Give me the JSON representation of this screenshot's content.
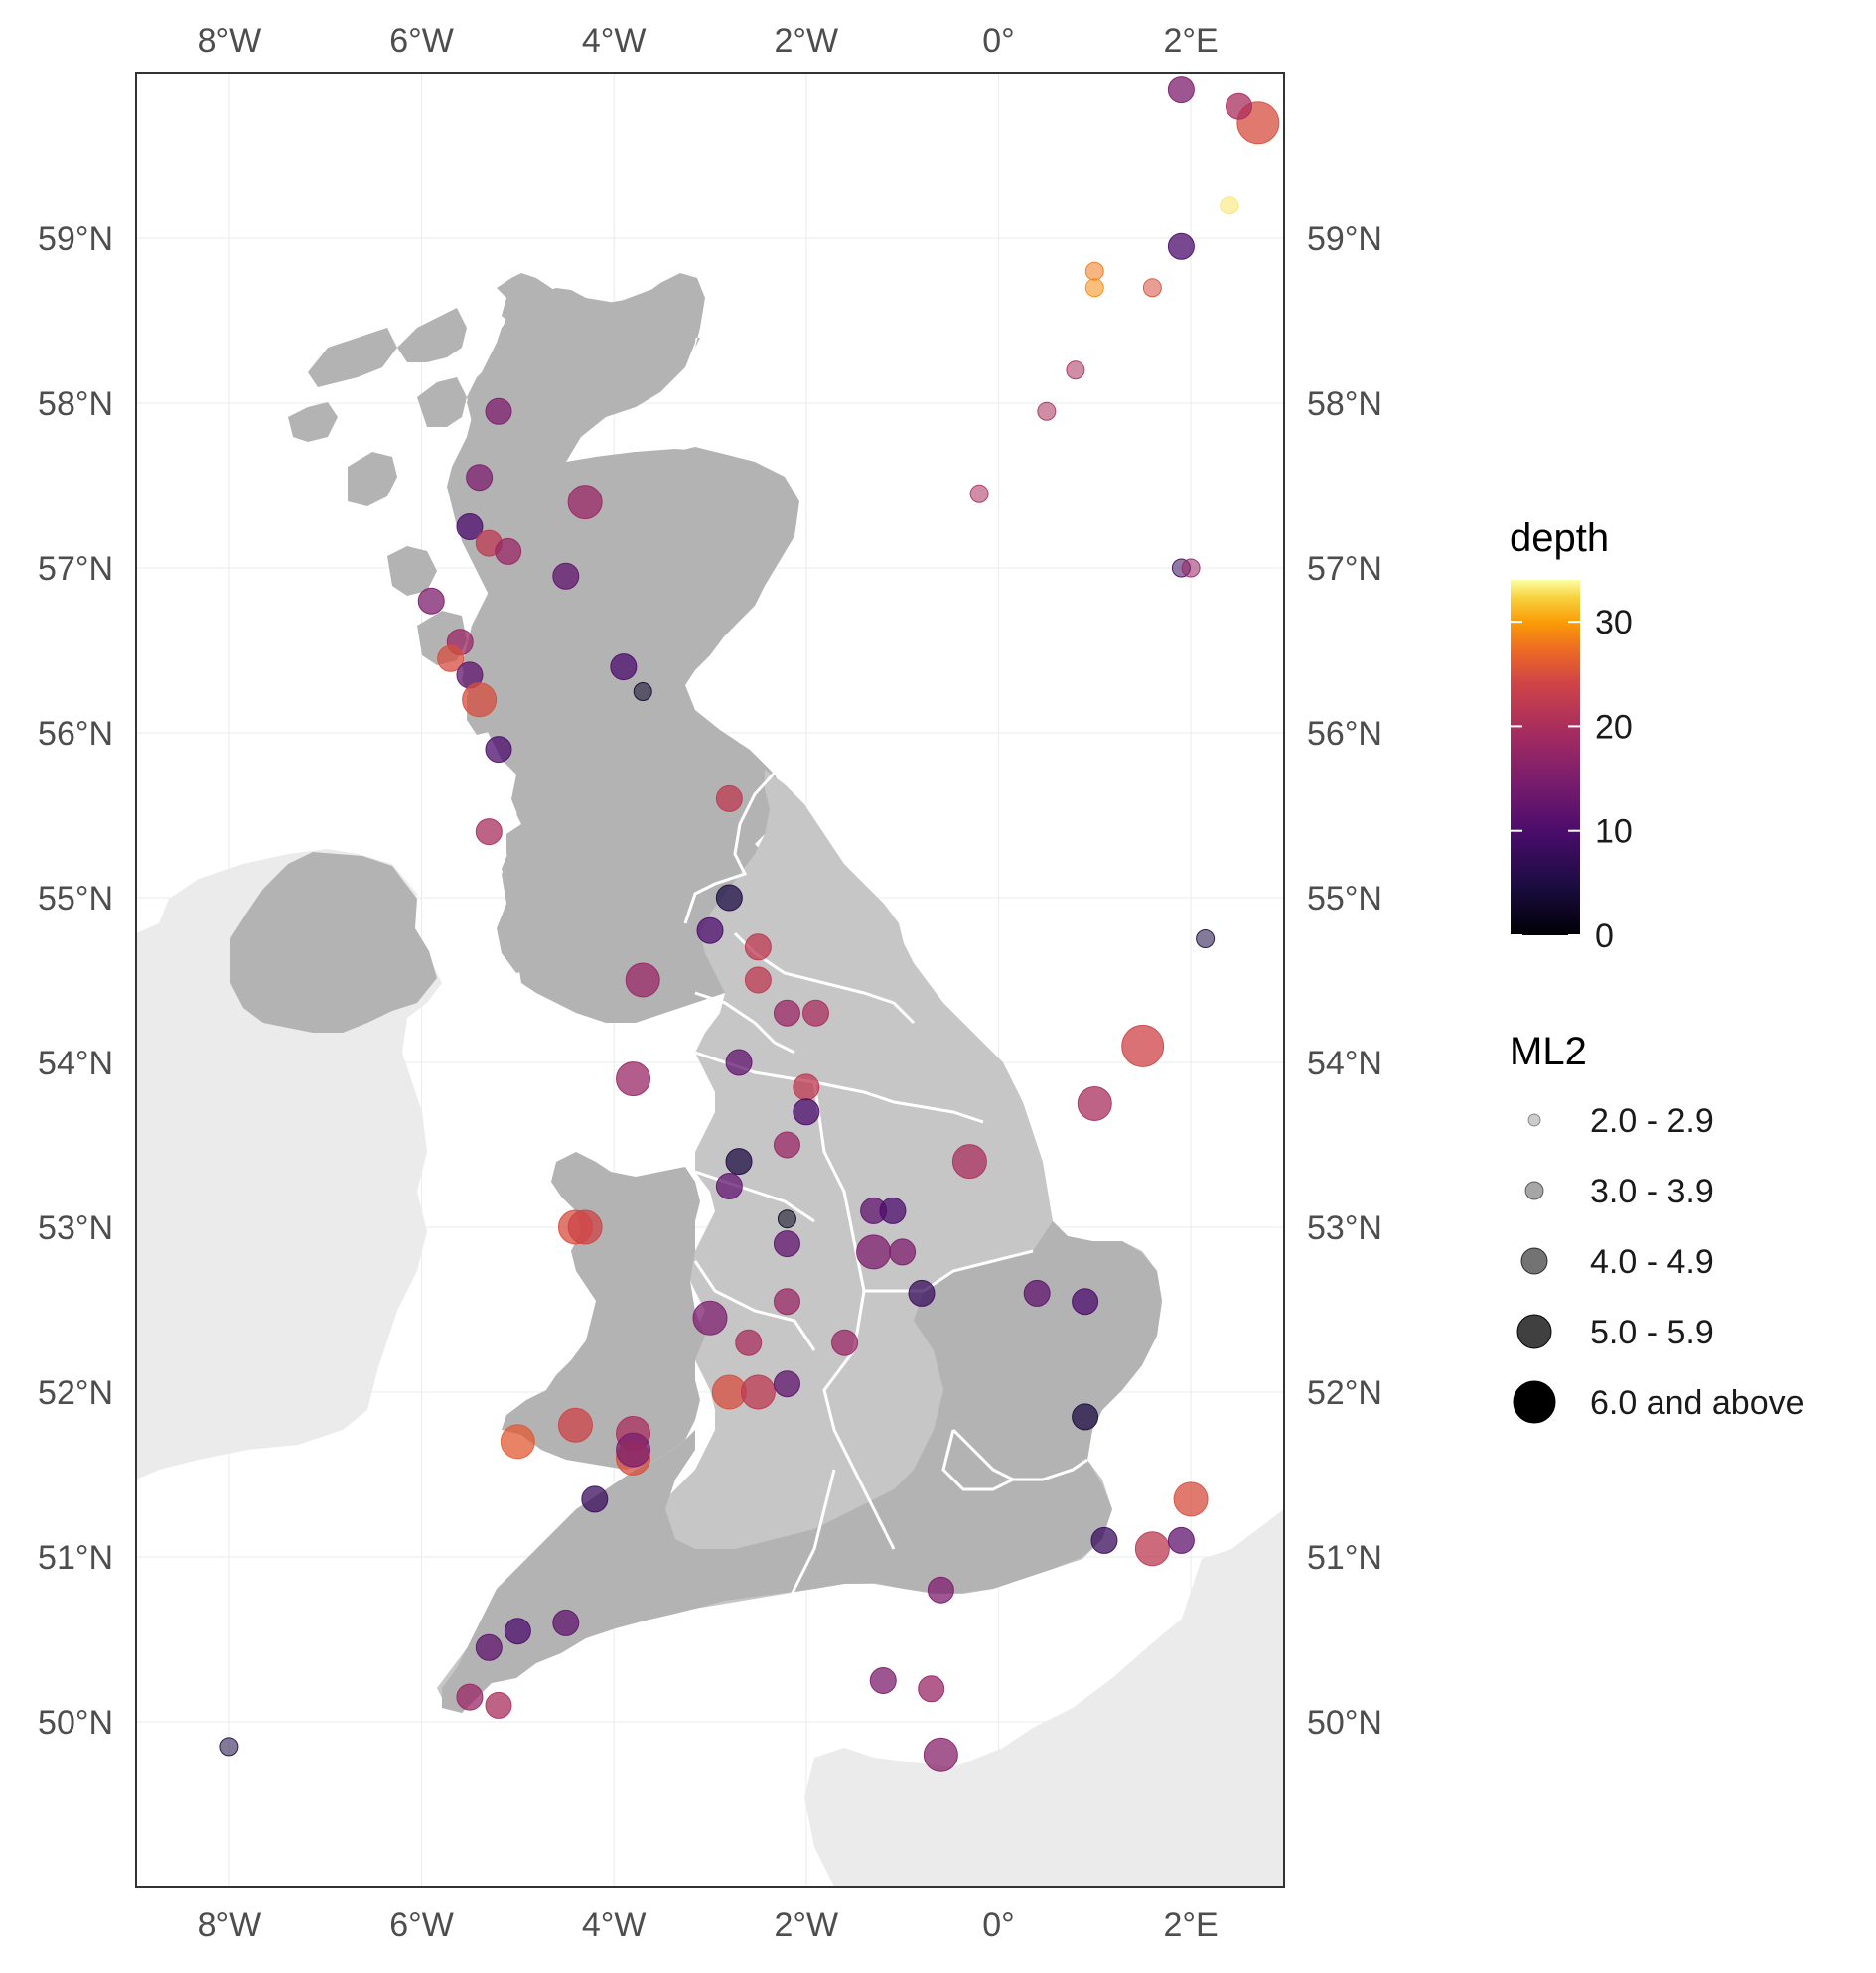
{
  "map": {
    "x_ticks": [
      {
        "lon": -8,
        "label": "8°W"
      },
      {
        "lon": -6,
        "label": "6°W"
      },
      {
        "lon": -4,
        "label": "4°W"
      },
      {
        "lon": -2,
        "label": "2°W"
      },
      {
        "lon": 0,
        "label": "0°"
      },
      {
        "lon": 2,
        "label": "2°E"
      }
    ],
    "y_ticks": [
      {
        "lat": 59,
        "label": "59°N"
      },
      {
        "lat": 58,
        "label": "58°N"
      },
      {
        "lat": 57,
        "label": "57°N"
      },
      {
        "lat": 56,
        "label": "56°N"
      },
      {
        "lat": 55,
        "label": "55°N"
      },
      {
        "lat": 54,
        "label": "54°N"
      },
      {
        "lat": 53,
        "label": "53°N"
      },
      {
        "lat": 52,
        "label": "52°N"
      },
      {
        "lat": 51,
        "label": "51°N"
      },
      {
        "lat": 50,
        "label": "50°N"
      }
    ],
    "lon_range": [
      -8.97,
      2.97
    ],
    "lat_range": [
      49.0,
      60.0
    ],
    "colors": {
      "land_gb": "#b3b3b3",
      "land_england_fill": "#c6c6c6",
      "land_other": "#ebebeb",
      "region_border": "#ffffff",
      "panel_border": "#333333"
    }
  },
  "legend": {
    "depth": {
      "title": "depth",
      "ticks": [
        {
          "value": 30,
          "label": "30"
        },
        {
          "value": 20,
          "label": "20"
        },
        {
          "value": 10,
          "label": "10"
        },
        {
          "value": 0,
          "label": "0"
        }
      ],
      "range": [
        0,
        34
      ],
      "colormap": "inferno"
    },
    "ml2": {
      "title": "ML2",
      "items": [
        {
          "label": "2.0 - 2.9",
          "level": 1
        },
        {
          "label": "3.0 - 3.9",
          "level": 2
        },
        {
          "label": "4.0 - 4.9",
          "level": 3
        },
        {
          "label": "5.0 - 5.9",
          "level": 4
        },
        {
          "label": "6.0 and above",
          "level": 5
        }
      ]
    }
  },
  "chart_data": {
    "type": "scatter",
    "x_axis": "longitude",
    "y_axis": "latitude",
    "size_legend": "ML2",
    "color_legend": "depth",
    "points": [
      {
        "lon": 2.7,
        "lat": 59.7,
        "depth": 25,
        "ml2": 5
      },
      {
        "lon": 2.5,
        "lat": 59.8,
        "depth": 20,
        "ml2": 3
      },
      {
        "lon": 1.9,
        "lat": 59.9,
        "depth": 15,
        "ml2": 3
      },
      {
        "lon": 1.9,
        "lat": 58.95,
        "depth": 10,
        "ml2": 3
      },
      {
        "lon": 1.6,
        "lat": 58.7,
        "depth": 25,
        "ml2": 2
      },
      {
        "lon": 1.0,
        "lat": 58.8,
        "depth": 28,
        "ml2": 2
      },
      {
        "lon": 1.0,
        "lat": 58.7,
        "depth": 29,
        "ml2": 2
      },
      {
        "lon": 2.4,
        "lat": 59.2,
        "depth": 33,
        "ml2": 2
      },
      {
        "lon": 0.8,
        "lat": 58.2,
        "depth": 20,
        "ml2": 2
      },
      {
        "lon": 0.5,
        "lat": 57.95,
        "depth": 20,
        "ml2": 2
      },
      {
        "lon": -0.2,
        "lat": 57.45,
        "depth": 20,
        "ml2": 2
      },
      {
        "lon": 1.9,
        "lat": 57.0,
        "depth": 8,
        "ml2": 2
      },
      {
        "lon": 2.0,
        "lat": 57.0,
        "depth": 18,
        "ml2": 2
      },
      {
        "lon": -4.3,
        "lat": 57.4,
        "depth": 18,
        "ml2": 4
      },
      {
        "lon": -5.2,
        "lat": 57.95,
        "depth": 15,
        "ml2": 3
      },
      {
        "lon": -5.4,
        "lat": 57.55,
        "depth": 15,
        "ml2": 3
      },
      {
        "lon": -5.5,
        "lat": 57.25,
        "depth": 10,
        "ml2": 3
      },
      {
        "lon": -5.3,
        "lat": 57.15,
        "depth": 22,
        "ml2": 3
      },
      {
        "lon": -5.1,
        "lat": 57.1,
        "depth": 18,
        "ml2": 3
      },
      {
        "lon": -4.5,
        "lat": 56.95,
        "depth": 12,
        "ml2": 3
      },
      {
        "lon": -5.9,
        "lat": 56.8,
        "depth": 15,
        "ml2": 3
      },
      {
        "lon": -5.6,
        "lat": 56.55,
        "depth": 18,
        "ml2": 3
      },
      {
        "lon": -5.7,
        "lat": 56.45,
        "depth": 25,
        "ml2": 3
      },
      {
        "lon": -5.5,
        "lat": 56.35,
        "depth": 12,
        "ml2": 3
      },
      {
        "lon": -5.4,
        "lat": 56.2,
        "depth": 25,
        "ml2": 4
      },
      {
        "lon": -5.2,
        "lat": 55.9,
        "depth": 10,
        "ml2": 3
      },
      {
        "lon": -3.9,
        "lat": 56.4,
        "depth": 10,
        "ml2": 3
      },
      {
        "lon": -3.7,
        "lat": 56.25,
        "depth": 3,
        "ml2": 2
      },
      {
        "lon": -5.3,
        "lat": 55.4,
        "depth": 20,
        "ml2": 3
      },
      {
        "lon": -2.8,
        "lat": 55.6,
        "depth": 22,
        "ml2": 3
      },
      {
        "lon": -2.8,
        "lat": 55.0,
        "depth": 5,
        "ml2": 3
      },
      {
        "lon": -3.0,
        "lat": 54.8,
        "depth": 10,
        "ml2": 3
      },
      {
        "lon": -3.7,
        "lat": 54.5,
        "depth": 18,
        "ml2": 4
      },
      {
        "lon": -2.5,
        "lat": 54.7,
        "depth": 22,
        "ml2": 3
      },
      {
        "lon": -2.5,
        "lat": 54.5,
        "depth": 22,
        "ml2": 3
      },
      {
        "lon": -2.2,
        "lat": 54.3,
        "depth": 18,
        "ml2": 3
      },
      {
        "lon": -1.9,
        "lat": 54.3,
        "depth": 20,
        "ml2": 3
      },
      {
        "lon": -3.8,
        "lat": 53.9,
        "depth": 18,
        "ml2": 4
      },
      {
        "lon": -2.7,
        "lat": 54.0,
        "depth": 12,
        "ml2": 3
      },
      {
        "lon": -2.0,
        "lat": 53.85,
        "depth": 22,
        "ml2": 3
      },
      {
        "lon": -2.0,
        "lat": 53.7,
        "depth": 10,
        "ml2": 3
      },
      {
        "lon": 1.5,
        "lat": 54.1,
        "depth": 24,
        "ml2": 5
      },
      {
        "lon": 1.0,
        "lat": 53.75,
        "depth": 20,
        "ml2": 4
      },
      {
        "lon": -0.3,
        "lat": 53.4,
        "depth": 20,
        "ml2": 4
      },
      {
        "lon": -2.7,
        "lat": 53.4,
        "depth": 5,
        "ml2": 3
      },
      {
        "lon": -2.2,
        "lat": 53.5,
        "depth": 18,
        "ml2": 3
      },
      {
        "lon": -2.8,
        "lat": 53.25,
        "depth": 12,
        "ml2": 3
      },
      {
        "lon": -2.2,
        "lat": 53.05,
        "depth": 2,
        "ml2": 2
      },
      {
        "lon": -4.4,
        "lat": 53.0,
        "depth": 25,
        "ml2": 4
      },
      {
        "lon": -4.3,
        "lat": 53.0,
        "depth": 24,
        "ml2": 4
      },
      {
        "lon": -1.3,
        "lat": 52.85,
        "depth": 15,
        "ml2": 4
      },
      {
        "lon": -1.3,
        "lat": 53.1,
        "depth": 12,
        "ml2": 3
      },
      {
        "lon": -1.1,
        "lat": 53.1,
        "depth": 10,
        "ml2": 3
      },
      {
        "lon": -1.0,
        "lat": 52.85,
        "depth": 15,
        "ml2": 3
      },
      {
        "lon": -2.2,
        "lat": 52.9,
        "depth": 12,
        "ml2": 3
      },
      {
        "lon": -2.2,
        "lat": 52.55,
        "depth": 18,
        "ml2": 3
      },
      {
        "lon": -3.0,
        "lat": 52.45,
        "depth": 15,
        "ml2": 4
      },
      {
        "lon": -2.6,
        "lat": 52.3,
        "depth": 20,
        "ml2": 3
      },
      {
        "lon": -1.6,
        "lat": 52.3,
        "depth": 18,
        "ml2": 3
      },
      {
        "lon": -0.8,
        "lat": 52.6,
        "depth": 8,
        "ml2": 3
      },
      {
        "lon": 0.4,
        "lat": 52.6,
        "depth": 12,
        "ml2": 3
      },
      {
        "lon": 0.9,
        "lat": 52.55,
        "depth": 10,
        "ml2": 3
      },
      {
        "lon": -2.8,
        "lat": 52.0,
        "depth": 25,
        "ml2": 4
      },
      {
        "lon": -2.5,
        "lat": 52.0,
        "depth": 22,
        "ml2": 4
      },
      {
        "lon": -2.2,
        "lat": 52.05,
        "depth": 12,
        "ml2": 3
      },
      {
        "lon": -5.0,
        "lat": 51.7,
        "depth": 26,
        "ml2": 4
      },
      {
        "lon": -4.4,
        "lat": 51.8,
        "depth": 24,
        "ml2": 4
      },
      {
        "lon": -3.8,
        "lat": 51.75,
        "depth": 20,
        "ml2": 4
      },
      {
        "lon": -3.8,
        "lat": 51.6,
        "depth": 25,
        "ml2": 4
      },
      {
        "lon": -3.8,
        "lat": 51.65,
        "depth": 15,
        "ml2": 4
      },
      {
        "lon": -4.2,
        "lat": 51.35,
        "depth": 8,
        "ml2": 3
      },
      {
        "lon": 0.9,
        "lat": 51.85,
        "depth": 5,
        "ml2": 3
      },
      {
        "lon": 2.0,
        "lat": 51.35,
        "depth": 25,
        "ml2": 4
      },
      {
        "lon": 1.6,
        "lat": 51.05,
        "depth": 22,
        "ml2": 4
      },
      {
        "lon": 1.9,
        "lat": 51.1,
        "depth": 12,
        "ml2": 3
      },
      {
        "lon": 1.1,
        "lat": 51.1,
        "depth": 8,
        "ml2": 3
      },
      {
        "lon": -0.6,
        "lat": 50.8,
        "depth": 15,
        "ml2": 3
      },
      {
        "lon": -4.5,
        "lat": 50.6,
        "depth": 12,
        "ml2": 3
      },
      {
        "lon": -5.0,
        "lat": 50.55,
        "depth": 10,
        "ml2": 3
      },
      {
        "lon": -5.3,
        "lat": 50.45,
        "depth": 12,
        "ml2": 3
      },
      {
        "lon": -5.5,
        "lat": 50.15,
        "depth": 18,
        "ml2": 3
      },
      {
        "lon": -5.2,
        "lat": 50.1,
        "depth": 20,
        "ml2": 3
      },
      {
        "lon": -1.2,
        "lat": 50.25,
        "depth": 15,
        "ml2": 3
      },
      {
        "lon": -0.7,
        "lat": 50.2,
        "depth": 18,
        "ml2": 3
      },
      {
        "lon": -0.6,
        "lat": 49.8,
        "depth": 16,
        "ml2": 4
      },
      {
        "lon": -8.0,
        "lat": 49.85,
        "depth": 5,
        "ml2": 2
      },
      {
        "lon": 2.15,
        "lat": 54.75,
        "depth": 5,
        "ml2": 2
      }
    ]
  }
}
